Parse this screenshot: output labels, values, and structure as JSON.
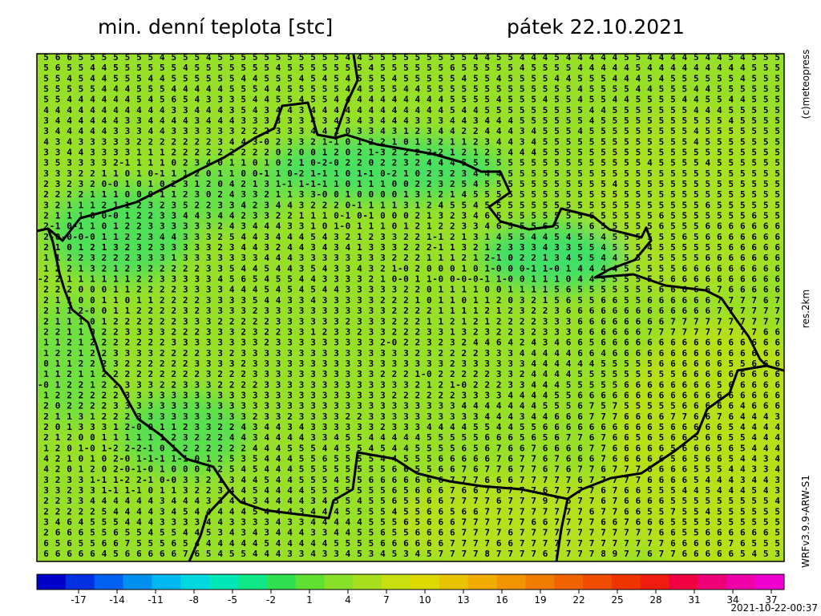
{
  "header": {
    "title": "min. denní teplota [stc]",
    "date": "pátek 22.10.2021"
  },
  "side_labels": {
    "copyright": "(c)meteopress",
    "resolution": "res.2km",
    "model": "WRFv3.9.9-ARW-S1"
  },
  "timestamp": "2021-10-22-00:37",
  "colorbar": {
    "colors": [
      "#0000c8",
      "#0030e0",
      "#0060f0",
      "#0090f0",
      "#00b8f0",
      "#00d8e0",
      "#00e8b8",
      "#10e888",
      "#30e050",
      "#60e030",
      "#88e028",
      "#a8e020",
      "#c8e010",
      "#dcd800",
      "#e8c400",
      "#f0ac00",
      "#f09400",
      "#f07c00",
      "#f06400",
      "#f04c00",
      "#f03400",
      "#f01c10",
      "#f00040",
      "#f00078",
      "#f000a8",
      "#f000d0"
    ],
    "labels": [
      "-17",
      "-14",
      "-11",
      "-8",
      "-5",
      "-2",
      "1",
      "4",
      "7",
      "10",
      "13",
      "16",
      "19",
      "22",
      "25",
      "28",
      "31",
      "34",
      "37"
    ]
  },
  "grid": {
    "rows": [
      " 5 6 6 5 5 5 5 5 5 5 4 5 5 5 4 5 5 5 5 5 5 5 5 5 5 5 4 4 5 5 5 5 5 5 5 5 5 4 4 5 5 4 4 4 5 4 4 4 4 4 5 5 4 4 4 4 5 4 4 5 4 5 5 5",
      " 5 6 5 5 4 4 5 5 5 5 5 5 4 5 5 5 5 5 5 5 4 5 5 5 5 5 5 5 4 5 5 5 5 5 5 6 5 5 5 5 5 4 5 5 5 5 4 4 4 4 4 5 4 4 4 4 4 4 4 4 4 5 5 5",
      " 5 5 4 5 4 4 5 5 5 4 4 5 5 5 5 5 5 4 4 5 5 5 4 5 4 5 4 5 5 5 4 5 5 5 5 5 4 5 5 4 5 5 5 5 4 4 5 5 5 4 4 4 5 4 5 5 5 5 5 5 4 5 5 5",
      " 5 5 5 5 5 4 4 4 5 5 5 4 4 4 4 4 5 5 5 4 4 5 5 5 5 5 4 4 5 5 5 4 4 5 5 5 5 5 5 5 5 5 5 5 5 5 4 5 5 5 5 4 4 5 5 5 4 4 5 5 5 5 5 5",
      " 5 5 4 4 4 4 4 4 5 4 5 6 5 4 3 3 3 5 4 4 5 5 4 5 5 4 4 4 4 4 4 4 4 4 4 5 5 5 5 4 5 5 5 4 5 5 4 5 5 4 4 5 5 5 5 4 4 5 5 4 4 5 5 5",
      " 4 4 4 4 4 4 4 4 4 4 4 3 3 4 4 4 3 5 4 3 4 4 3 4 4 4 4 4 4 4 4 4 4 4 4 5 4 4 5 5 5 5 5 5 5 5 5 4 4 5 5 5 5 5 5 5 4 4 4 5 5 5 5 5",
      " 3 4 4 4 4 4 4 3 3 4 4 4 4 3 4 4 4 3 3 3 3 3 3 4 3 4 3 4 3 4 4 4 3 3 3 4 4 3 4 4 4 5 5 5 5 5 5 4 5 5 5 5 5 5 5 5 5 5 5 4 5 5 5 5",
      " 3 4 4 4 4 4 3 3 3 4 4 3 3 3 3 3 3 2 2 2 3 3 3 4 4 1 0 3 3 4 3 1 2 3 4 4 2 2 4 4 4 3 4 5 5 5 4 5 5 5 5 5 5 5 5 5 4 5 5 5 5 5 5 5",
      " 4 3 4 3 3 3 3 3 2 2 2 2 2 2 2 3 4 4 3-0 2 3 3 2 1-1 0 1 2 2 1 0 1 3 2 1 1 2 3 4 4 3 4 5 5 5 5 5 5 5 5 5 5 5 5 5 4 5 5 5 5 5 5 5",
      " 3 3 4 4 3 3 3 3 1 1 1 2 2 2 2 2 2 2 2 2 0 2 0 0 1 2 0 2 1-3 2 2 2 2-2 1 2 1 2 3 4 4 4 5 5 5 5 5 5 5 5 5 5 5 5 5 5 5 5 5 5 5 5 5",
      " 3 5 3 3 3 3 2-1 1 1 1 0 2 3 4 0 1 1 0 1 0 2 1 0-2-0 2 2 0 2 2 3 2 4 4 4 5 5 5 5 5 5 5 5 5 5 5 5 5 5 5 5 4 5 5 5 5 4 5 5 5 5 5 5",
      " 3 3 3 2 2 1 1 0 1 0-1 1 1 2 0 1 1 0 0-1 1 0-2 1-1 1 0 1-1 0-2 1 0 2 3 2 3 4 4 4 5 5 5 5 5 5 5 5 5 5 5 5 5 5 5 5 5 5 5 5 5 5 5 5",
      " 2 3 2 3 2 0-0 1 0 1 0 2 3 1 2 0 4 2 1 3 1-1 1-1-1 1 0 1 1 1 0 0 2 2 3 2 5 4 5 5 5 5 5 5 5 5 5 5 5 4 5 5 5 5 5 5 5 5 5 5 5 5 5 5",
      " 2 2 2 2 1 1 1 0 0 0 1 1 2 3 0 2 4 3 3 2 1 1 3 3-0 0 1 0 0 0 0 1 3 1 2 1 4 5 5 5 5 5 5 5 5 5 5 5 5 5 5 5 5 5 5 5 5 5 5 5 5 5 5 5",
      " 3 2 1 1 1 2 1 1 2 3 2 3 5 2 2 3 3 4 2 3 4 4 3 2 2 2 0-1 1 1 1 3 1 2 4 5 5 4 5 5 5 5 5 5 5 5 5 5 5 5 5 5 5 5 5 5 5 6 5 5 5 5 5 5",
      " 2 1 1 1 0 0-0 1 2 2 3 3 4 4 3 4 4 2 3 3 2 2 1 1 1 0-1 0-1 0 0 0 2 1 3 2 3 4 6 5 5 5 5 5 5 5 5 6 5 5 5 5 5 6 5 5 5 5 5 5 5 6 5 5",
      " 2-1 0-1 1 0 1 2 2 3 3 3 3 3 3 2 4 3 4 4 4 3 3 1 0 1-0 1 1 1 0 1 2 1 2 2 3 3 4 6 5 5 5 6 5 5 5 6 5 5 5 5 5 6 5 5 5 6 6 6 6 6 6 6",
      " 2-0-0-0-0 1 1 2 2 3 4 4 3 3 3 2 5 4 4 3 4 4 4 5 4 3 2 1 2 3 3 2 2 1-1 2 1 3 1 4 5 5 4 4 5 4 5 5 4 5 5 5 5 5 5 6 5 6 6 6 6 6 6 6",
      " 2 1 0 1 2 1 3 2 3 2 3 3 3 3 3 2 3 4 4 3 2 4 4 3 4 3 4 1 3 3 3 2 2 2-1 1 3 2 1 2 3 3 3 4 3 3 5 5 4 5 5 5 4 5 5 5 5 5 5 6 6 6 6 6",
      " 1 1 2 2 3 2 2 2 3 3 3 1 3 3 3 3 3 3 3 4 4 4 3 3 3 3 3 3 3 3 2 2 2 1 1 1 2 1 2-1 0 2 2 1 3 4 5 5 4 4 5 5 5 5 5 5 5 6 6 6 6 6 6 6",
      " 1 2 2 1 3 2 1 2 3 2 2 2 2 2 3 3 5 4 4 5 4 4 3 5 4 3 3 4 3 2 1-0 2 0 0 0 1 0 1-0 0 0-1 1-0 1 4 4 4 4 5 5 5 5 5 6 6 6 6 6 6 6 6 6",
      "-2 2 1 1 1 1 1 1 2 2 3 3 3 3 3 4 5 6 5 4 5 5 4 4 3 3 3 3 2 1 0-0 1 1-0 0-0-0-1 1-0 0 1 1 1 0 4 4 5 5 5 5 5 5 6 6 6 6 6 6 6 6 6 6",
      " 2 2 2 0 0 0 1 1 2 2 2 2 3 3 3 3 4 4 4 5 4 5 4 5 4 4 3 3 3 3 3 2 2 0 1 1 1 1 0 0 1 1 1 1 5 6 5 5 5 5 5 5 5 6 6 6 6 6 7 6 6 6 6 6",
      " 2 1 1 0 0 1 1 0 1 1 2 2 2 2 3 3 3 3 5 4 4 3 3 4 3 3 3 3 3 2 2 2 1 0 1 1 0 1 1 2 0 3 2 1 5 6 5 5 6 6 5 5 6 6 6 6 6 6 7 7 7 7 6 7",
      " 2 1 1 2-0 0 1 1 2 2 2 2 3 2 3 3 3 3 2 3 3 3 3 3 3 3 3 3 3 3 2 2 2 2 1 1 1 1 2 1 2 3 2 2 3 6 6 6 6 6 6 6 6 6 6 6 6 6 7 7 7 7 7 7",
      " 2 1 1 1 0 1 2 2 2 2 2 2 3 3 3 2 2 2 2 2 3 3 3 3 3 3 2 3 3 3 2 2 2 1 1 2 1 2 1 2 2 2 2 3 3 3 6 6 6 6 6 6 6 6 7 7 7 7 7 7 7 7 7 7",
      " 2 2 1 1 0 2 2 3 3 3 3 2 2 2 3 3 3 2 3 2 2 3 3 1 2 3 3 2 3 3 2 2 2 3 3 1 3 2 3 2 2 3 2 3 3 3 6 6 6 6 6 6 7 7 7 7 7 7 7 7 7 7 6 6",
      " 1 1 2 1 2 2 2 2 2 2 2 3 3 3 3 3 3 3 3 2 3 3 3 3 3 3 3 3 3 2-0 2 2 3 2 3 2 4 4 6 4 2 4 3 4 6 6 5 6 6 6 6 6 6 6 6 6 6 6 6 6 6 6 6",
      " 1 2 2 1 2 2 3 3 3 3 2 2 2 2 3 3 2 3 3 3 3 3 3 3 3 3 3 3 3 3 3 3 2 3 2 2 2 2 3 3 3 4 4 4 4 4 6 6 4 6 6 6 6 6 6 6 6 6 6 6 6 6 6 6",
      " 0 1 1 2 2 2 3 2 2 2 2 2 2 3 3 3 3 2 3 3 3 3 3 3 3 3 3 3 3 3 3 3 3 3 3 2 3 3 3 3 3 3 4 4 4 4 4 4 5 5 5 5 5 6 6 6 6 6 6 5 5 6 6 6",
      " 1 1 2 1 1 2 2 2 2 2 2 2 2 2 3 2 2 2 3 3 3 3 3 3 3 3 3 3 3 2 2 2 1-0 2 2 2 2 2 3 3 2 4 4 4 4 5 5 5 5 5 5 5 5 5 6 6 6 6 6 6 6 6 6",
      "-0 1 2 2 1 2 2 3 3 3 2 2 3 3 3 2 2 2 2 3 3 3 3 3 3 3 3 3 3 3 3 3 2 1 2 1-0 2 2 2 3 3 4 4 4 5 5 5 5 5 6 6 6 6 6 6 6 6 5 6 6 6 6 6",
      " 1 2 2 2 2 2 2 3 3 3 3 3 3 3 3 3 3 3 3 3 3 3 3 3 3 3 3 3 3 3 2 2 2 2 2 2 3 3 3 3 4 4 4 4 5 5 6 6 6 6 6 6 6 6 6 6 6 6 6 6 6 6 6 6",
      " 2 0 2 2 2 2 3 3 3 3 3 3 3 3 3 3 3 3 3 3 3 3 3 3 3 3 3 3 3 3 3 3 3 3 3 3 4 4 4 4 4 4 4 5 5 5 6 7 5 7 5 5 5 5 5 6 6 6 6 6 4 6 6 6",
      " 2 1 1 3 1 2 2 2 3 3 3 3 3 3 3 3 3 3 2 3 3 2 3 3 3 3 2 2 3 3 3 3 3 3 3 3 3 3 4 4 4 3 4 4 6 6 6 7 7 7 6 6 6 6 7 7 6 6 7 6 4 4 4 3",
      " 2 0 1 3 3 3 1 2-0 0 1 1 2 3 3 2 2 4 3 4 4 3 4 3 3 3 3 3 3 2 3 3 3 4 4 4 4 5 5 4 4 5 5 6 6 6 6 6 6 6 6 6 6 5 6 6 6 6 6 5 4 4 4 4",
      " 2 1 2 0 0 1 1 1 1 1 1 2 3 2 2 2 4 4 3 4 4 4 4 3 3 4 5 5 4 4 4 4 4 5 5 5 5 5 6 6 6 5 6 5 6 7 7 6 7 6 6 5 6 5 6 6 5 6 6 5 5 4 4 4",
      " 1 2 0 1-0 1-2 2-2-1 0 1 2 2 2 2 2 2 4 4 4 5 5 5 4 4 5 5 4 5 4 4 5 5 5 5 6 5 6 7 6 6 7 6 6 6 6 7 7 6 6 6 6 6 5 6 6 6 5 6 5 4 4 4",
      " 4 2 1 0 1 0 2-0 1-1-1 1-1 0 1 2 5 3 5 4 4 4 5 5 6 5 5 5 5 4 4 5 5 5 6 6 6 6 6 7 6 7 7 6 7 6 6 6 7 6 6 6 6 6 5 6 5 6 6 5 4 4 3 4",
      " 4 2 0 1 2 0 2-0-1-0 1 0 0 0 4 2 5 4 5 4 4 4 5 5 5 5 5 5 5 5 6 6 5 5 6 6 7 6 7 7 6 7 7 6 7 6 7 7 6 7 7 7 6 6 6 6 5 5 5 4 4 3 3 4",
      " 3 2 3 3 1-1 1-2 2-1 0-0 3 3 2 1 3 4 4 5 4 4 5 5 5 4 5 5 6 6 6 6 6 6 6 7 7 7 6 6 6 7 7 7 7 7 6 7 7 7 7 7 6 6 6 6 5 4 4 4 3 4 4 3",
      " 3 3 2 3 3 1-1 1-1 0 1 1 3 2 2 3 4 4 5 4 4 4 4 5 5 5 5 5 5 5 6 5 6 6 6 7 6 6 7 6 7 7 7 6 7 7 7 7 6 7 6 6 5 5 5 4 4 5 4 4 4 5 4 3",
      " 2 2 3 3 4 4 4 4 4 4 3 4 4 4 3 3 4 4 3 4 4 4 4 3 4 5 5 4 5 5 6 5 5 6 6 7 7 7 7 6 7 7 7 9 7 6 7 7 6 7 6 6 6 6 5 5 5 5 5 5 5 5 5 4",
      " 2 2 2 2 2 5 4 4 4 4 3 4 5 4 4 4 4 4 5 4 4 4 3 4 4 4 5 5 5 5 4 5 5 6 6 5 6 6 7 7 7 7 7 7 7 7 7 6 7 7 6 6 5 5 7 5 5 4 5 5 5 5 5 5",
      " 3 4 6 4 5 5 5 4 4 4 3 3 3 3 4 4 3 3 3 3 4 3 3 4 4 4 4 4 5 5 5 6 5 6 6 6 7 7 7 7 7 7 6 6 7 7 7 7 6 6 7 6 6 6 5 5 5 5 5 5 5 5 5 5",
      " 2 6 6 6 5 5 6 5 5 4 5 5 4 4 5 3 4 3 4 3 4 4 4 3 3 4 4 5 5 6 5 5 6 6 6 6 7 7 7 7 6 7 7 7 7 7 7 7 7 7 7 7 7 6 6 5 5 6 6 6 6 6 6 5",
      " 6 5 6 5 5 6 6 7 5 5 5 6 5 4 4 4 4 4 4 5 4 4 4 4 4 5 5 5 5 6 6 6 6 6 6 7 7 7 7 6 6 7 7 7 7 7 7 7 7 7 7 7 7 7 6 6 6 6 6 7 6 5 5 5",
      " 6 6 6 6 6 4 5 6 6 6 6 6 7 6 5 4 5 5 4 4 4 3 3 4 3 3 4 5 3 4 5 3 4 5 7 7 7 7 8 7 7 7 7 6 7 7 7 7 8 9 7 7 6 7 7 6 6 6 6 6 5 4 5 3"
    ]
  }
}
